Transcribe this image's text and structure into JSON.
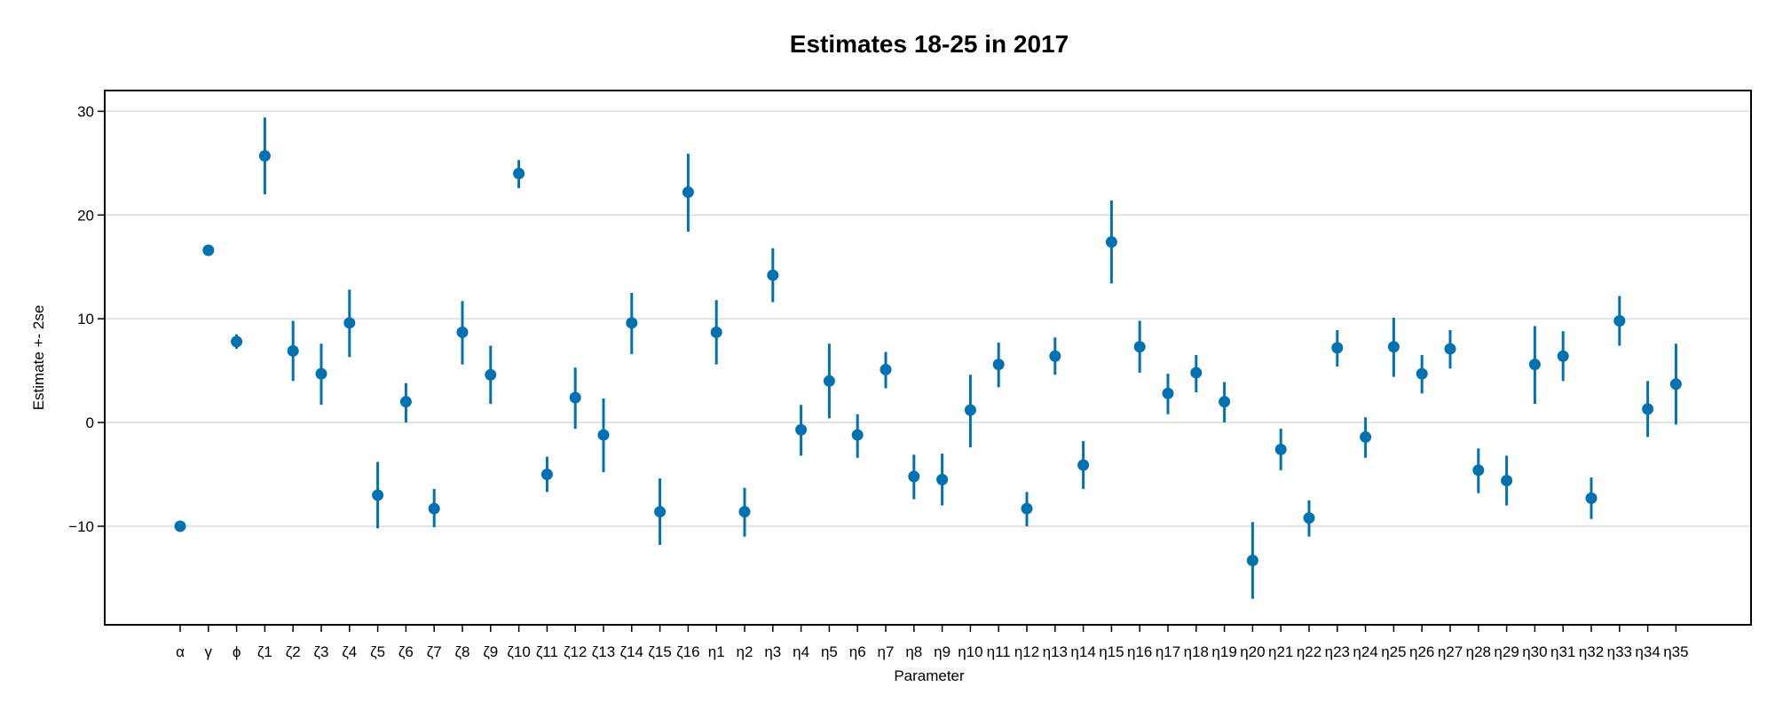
{
  "chart_data": {
    "type": "scatter",
    "title": "Estimates 18-25 in 2017",
    "xlabel": "Parameter",
    "ylabel": "Estimate +- 2se",
    "ylim": [
      -19.5,
      32
    ],
    "yticks": [
      -10,
      0,
      10,
      20,
      30
    ],
    "ytick_labels": [
      "−10",
      "0",
      "10",
      "20",
      "30"
    ],
    "grid": "horizontal",
    "marker_color": "#0072b2",
    "categories": [
      "α",
      "γ",
      "ϕ",
      "ζ1",
      "ζ2",
      "ζ3",
      "ζ4",
      "ζ5",
      "ζ6",
      "ζ7",
      "ζ8",
      "ζ9",
      "ζ10",
      "ζ11",
      "ζ12",
      "ζ13",
      "ζ14",
      "ζ15",
      "ζ16",
      "η1",
      "η2",
      "η3",
      "η4",
      "η5",
      "η6",
      "η7",
      "η8",
      "η9",
      "η10",
      "η11",
      "η12",
      "η13",
      "η14",
      "η15",
      "η16",
      "η17",
      "η18",
      "η19",
      "η20",
      "η21",
      "η22",
      "η23",
      "η24",
      "η25",
      "η26",
      "η27",
      "η28",
      "η29",
      "η30",
      "η31",
      "η32",
      "η33",
      "η34",
      "η35"
    ],
    "estimate": [
      -10.0,
      16.6,
      7.8,
      25.7,
      6.9,
      4.7,
      9.6,
      -7.0,
      2.0,
      -8.3,
      8.7,
      4.6,
      24.0,
      -5.0,
      2.4,
      -1.2,
      9.6,
      -8.6,
      22.2,
      8.7,
      -8.6,
      14.2,
      -0.7,
      4.0,
      -1.2,
      5.1,
      -5.2,
      -5.5,
      1.2,
      5.6,
      -8.3,
      6.4,
      -4.1,
      17.4,
      7.3,
      2.8,
      4.8,
      2.0,
      -13.3,
      -2.6,
      -9.2,
      7.2,
      -1.4,
      7.3,
      4.7,
      7.1,
      -4.6,
      -5.6,
      5.6,
      6.4,
      -7.3,
      9.8,
      1.3,
      3.7
    ],
    "lower": [
      -10.0,
      16.6,
      7.1,
      22.0,
      4.0,
      1.7,
      6.3,
      -10.2,
      0.0,
      -10.1,
      5.6,
      1.8,
      22.6,
      -6.7,
      -0.6,
      -4.8,
      6.6,
      -11.8,
      18.4,
      5.6,
      -11.0,
      11.6,
      -3.2,
      0.4,
      -3.4,
      3.3,
      -7.4,
      -8.0,
      -2.4,
      3.4,
      -10.0,
      4.6,
      -6.4,
      13.4,
      4.8,
      0.8,
      2.9,
      0.0,
      -17.0,
      -4.6,
      -11.0,
      5.4,
      -3.4,
      4.4,
      2.8,
      5.2,
      -6.8,
      -8.0,
      1.8,
      4.0,
      -9.3,
      7.4,
      -1.4,
      -0.2
    ],
    "upper": [
      -10.0,
      16.6,
      8.5,
      29.4,
      9.8,
      7.6,
      12.8,
      -3.8,
      3.8,
      -6.4,
      11.7,
      7.4,
      25.3,
      -3.3,
      5.3,
      2.3,
      12.5,
      -5.4,
      25.9,
      11.8,
      -6.3,
      16.8,
      1.7,
      7.6,
      0.8,
      6.8,
      -3.1,
      -3.0,
      4.6,
      7.7,
      -6.7,
      8.2,
      -1.8,
      21.4,
      9.8,
      4.7,
      6.5,
      3.9,
      -9.6,
      -0.6,
      -7.5,
      8.9,
      0.5,
      10.1,
      6.5,
      8.9,
      -2.5,
      -3.2,
      9.3,
      8.8,
      -5.3,
      12.2,
      4.0,
      7.6
    ]
  }
}
